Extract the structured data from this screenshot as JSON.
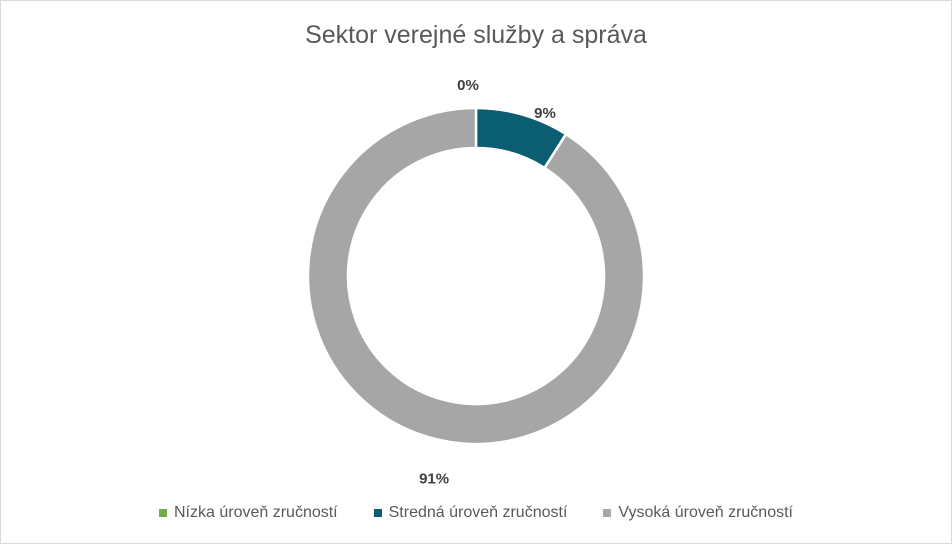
{
  "chart_data": {
    "type": "pie",
    "title": "Sektor verejné služby a správa",
    "categories": [
      "Nízka úroveň zručností",
      "Stredná úroveň zručností",
      "Vysoká úroveň zručností"
    ],
    "values": [
      0,
      9,
      91
    ],
    "data_labels": [
      "0%",
      "9%",
      "91%"
    ],
    "colors": [
      "#70ad47",
      "#0b5d72",
      "#a6a6a6"
    ],
    "donut": true,
    "legend_position": "bottom"
  }
}
